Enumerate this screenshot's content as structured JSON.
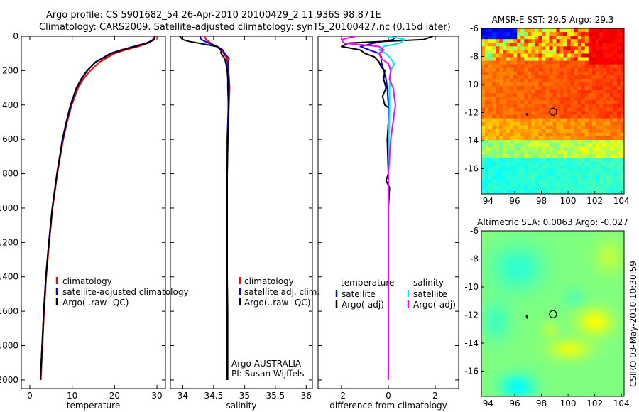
{
  "colors": {
    "climatology": "#ff0000",
    "satellite": "#0000ff",
    "argo": "#000000",
    "satellite_salinity": "#00e5ee",
    "argo_salinity": "#ff00ff",
    "frame": "#000000"
  },
  "header": {
    "line1": "Argo profile: CS 5901682_54 26-Apr-2010 20100429_2 11.936S 98.871E",
    "line2": "Climatology: CARS2009. Satellite-adjusted climatology: synTS_20100427.nc (0.15d later)"
  },
  "footer": {
    "credit": "CSIRO 03-May-2010 10:30:59"
  },
  "chart_data": [
    {
      "id": "temperature",
      "type": "line",
      "xlabel": "temperature",
      "ylabel": "",
      "xlim": [
        -2,
        32
      ],
      "ylim": [
        2050,
        0
      ],
      "xticks": [
        "0",
        "10",
        "20",
        "30"
      ],
      "xtick_values": [
        0,
        10,
        20,
        30
      ],
      "yticks": [
        "0",
        "200",
        "400",
        "600",
        "800",
        "1000",
        "1200",
        "1400",
        "1600",
        "1800",
        "2000"
      ],
      "ytick_values": [
        0,
        200,
        400,
        600,
        800,
        1000,
        1200,
        1400,
        1600,
        1800,
        2000
      ],
      "legend": [
        "climatology",
        "satellite-adjusted climatology",
        "Argo(..raw -QC)"
      ],
      "series": [
        {
          "name": "climatology",
          "color_key": "climatology",
          "depth": [
            0,
            20,
            40,
            60,
            80,
            100,
            150,
            200,
            250,
            300,
            400,
            500,
            600,
            800,
            1000,
            1200,
            1400,
            1600,
            1800,
            2000
          ],
          "values": [
            29.3,
            29.0,
            28.0,
            25.5,
            22.5,
            20.0,
            16.5,
            14.3,
            12.6,
            11.4,
            9.9,
            8.8,
            7.9,
            6.5,
            5.4,
            4.6,
            3.9,
            3.4,
            3.0,
            2.6
          ]
        },
        {
          "name": "satellite-adjusted climatology",
          "color_key": "satellite",
          "depth": [
            0,
            20,
            40,
            60,
            80,
            100,
            150,
            200,
            250,
            300,
            400,
            500,
            600,
            800,
            1000,
            1200,
            1400,
            1600,
            1800,
            2000
          ],
          "values": [
            29.6,
            29.3,
            27.5,
            24.5,
            21.5,
            19.0,
            15.5,
            13.6,
            12.2,
            11.1,
            9.7,
            8.7,
            7.8,
            6.4,
            5.3,
            4.5,
            3.8,
            3.3,
            2.9,
            2.5
          ]
        },
        {
          "name": "Argo(..raw -QC)",
          "color_key": "argo",
          "depth": [
            0,
            20,
            40,
            60,
            80,
            100,
            150,
            200,
            250,
            300,
            400,
            500,
            600,
            800,
            1000,
            1200,
            1400,
            1600,
            1800,
            2000
          ],
          "values": [
            29.5,
            29.4,
            27.8,
            24.8,
            21.8,
            19.3,
            15.6,
            13.5,
            12.1,
            11.0,
            9.6,
            8.6,
            7.7,
            6.4,
            5.3,
            4.5,
            3.8,
            3.3,
            2.9,
            2.5
          ]
        }
      ]
    },
    {
      "id": "salinity",
      "type": "line",
      "xlabel": "salinity",
      "ylabel": "",
      "xlim": [
        33.8,
        36.1
      ],
      "ylim": [
        2050,
        0
      ],
      "xticks": [
        "34",
        "34.5",
        "35",
        "35.5",
        "36"
      ],
      "xtick_values": [
        34,
        34.5,
        35,
        35.5,
        36
      ],
      "legend": [
        "climatology",
        "satellite adj. clim.",
        "Argo(..raw -QC)"
      ],
      "annotation": [
        "Argo AUSTRALIA",
        "PI: Susan Wijffels"
      ],
      "series": [
        {
          "name": "climatology",
          "color_key": "climatology",
          "depth": [
            0,
            20,
            40,
            60,
            80,
            100,
            130,
            160,
            200,
            250,
            300,
            400,
            500,
            600,
            800,
            1000,
            1200,
            1400,
            1600,
            1800,
            2000
          ],
          "values": [
            34.35,
            34.38,
            34.45,
            34.55,
            34.62,
            34.66,
            34.72,
            34.72,
            34.74,
            34.75,
            34.76,
            34.75,
            34.74,
            34.73,
            34.72,
            34.72,
            34.72,
            34.72,
            34.73,
            34.73,
            34.73
          ]
        },
        {
          "name": "satellite adj. clim.",
          "color_key": "satellite",
          "depth": [
            0,
            20,
            40,
            60,
            80,
            100,
            130,
            160,
            200,
            250,
            300,
            400,
            500,
            600,
            800,
            1000,
            1200,
            1400,
            1600,
            1800,
            2000
          ],
          "values": [
            34.28,
            34.3,
            34.42,
            34.56,
            34.65,
            34.68,
            34.75,
            34.73,
            34.74,
            34.75,
            34.75,
            34.74,
            34.73,
            34.72,
            34.72,
            34.72,
            34.72,
            34.72,
            34.72,
            34.72,
            34.72
          ]
        },
        {
          "name": "Argo(..raw -QC)",
          "color_key": "argo",
          "depth": [
            0,
            20,
            30,
            40,
            60,
            80,
            100,
            130,
            160,
            200,
            250,
            300,
            400,
            500,
            600,
            800,
            1000,
            1200,
            1400,
            1600,
            1800,
            2000
          ],
          "values": [
            33.95,
            34.0,
            34.1,
            34.25,
            34.55,
            34.62,
            34.62,
            34.68,
            34.7,
            34.72,
            34.73,
            34.73,
            34.74,
            34.74,
            34.73,
            34.72,
            34.72,
            34.72,
            34.72,
            34.72,
            34.72,
            34.72
          ]
        }
      ]
    },
    {
      "id": "difference",
      "type": "line",
      "xlabel": "difference from climatology",
      "ylabel": "",
      "xlim": [
        -3,
        3
      ],
      "ylim": [
        2050,
        0
      ],
      "xticks": [
        "-2",
        "0",
        "2"
      ],
      "xtick_values": [
        -2,
        0,
        2
      ],
      "legend_left_title": "temperature",
      "legend_right_title": "salinity",
      "legend": [
        "satellite",
        "Argo(-adj)",
        "satellite",
        "Argo(-adj)"
      ],
      "series": [
        {
          "name": "temperature satellite",
          "color_key": "satellite",
          "depth": [
            0,
            20,
            40,
            60,
            80,
            100,
            120,
            150,
            200,
            250,
            300,
            400,
            500,
            600,
            800,
            1000,
            1200,
            1400,
            1600,
            1800,
            2000
          ],
          "values": [
            0.3,
            0.2,
            -0.6,
            -1.2,
            -0.8,
            -0.4,
            -0.3,
            -0.3,
            -0.2,
            -0.1,
            -0.05,
            0.0,
            0.0,
            0.0,
            0.0,
            0.0,
            0.0,
            0.0,
            0.0,
            0.0,
            0.0
          ]
        },
        {
          "name": "temperature Argo(-adj)",
          "color_key": "argo",
          "depth": [
            0,
            20,
            40,
            60,
            80,
            100,
            120,
            150,
            180,
            200,
            250,
            300,
            350,
            400,
            420,
            500,
            600,
            800,
            840,
            880,
            1000,
            1200,
            1400,
            1600,
            1800,
            2000
          ],
          "values": [
            1.9,
            1.5,
            -1.7,
            -2.0,
            -1.2,
            -1.0,
            -0.6,
            -0.4,
            -0.3,
            -0.15,
            -0.2,
            -0.1,
            -0.25,
            -0.15,
            0.05,
            0.0,
            -0.05,
            0.0,
            -0.1,
            0.05,
            0.0,
            0.0,
            0.0,
            0.0,
            0.0,
            0.0
          ]
        },
        {
          "name": "salinity satellite",
          "color_key": "satellite_salinity",
          "depth": [
            0,
            20,
            40,
            60,
            80,
            100,
            130,
            160,
            200,
            300,
            400,
            500,
            600,
            800,
            1000,
            1200,
            1400,
            1600,
            1800,
            2000
          ],
          "values": [
            0.0,
            0.7,
            0.5,
            -0.2,
            -0.4,
            -0.1,
            0.1,
            0.25,
            0.1,
            0.05,
            0.05,
            0.03,
            0.02,
            0.0,
            0.0,
            0.0,
            0.0,
            0.0,
            0.0,
            0.0
          ]
        },
        {
          "name": "salinity Argo(-adj)",
          "color_key": "argo_salinity",
          "depth": [
            0,
            20,
            40,
            60,
            80,
            100,
            130,
            160,
            200,
            250,
            300,
            400,
            500,
            600,
            800,
            1000,
            1200,
            1400,
            1600,
            1800,
            2000
          ],
          "values": [
            -1.4,
            -2.0,
            -1.9,
            -0.4,
            -0.2,
            -0.4,
            -0.3,
            0.0,
            0.1,
            0.05,
            0.2,
            0.3,
            0.2,
            0.1,
            0.0,
            0.0,
            0.0,
            0.0,
            0.0,
            0.0,
            0.0
          ]
        }
      ]
    },
    {
      "id": "sst_map",
      "type": "heatmap",
      "title": "AMSR-E SST: 29.5  Argo: 29.3",
      "xlim": [
        93.5,
        104.2
      ],
      "ylim": [
        -17.8,
        -6.0
      ],
      "xticks": [
        "94",
        "96",
        "98",
        "100",
        "102",
        "104"
      ],
      "xtick_values": [
        94,
        96,
        98,
        100,
        102,
        104
      ],
      "yticks": [
        "-6",
        "-8",
        "-10",
        "-12",
        "-14",
        "-16"
      ],
      "ytick_values": [
        -6,
        -8,
        -10,
        -12,
        -14,
        -16
      ],
      "colorscale": "jet, SST approx 27–31 degC",
      "profile_location": {
        "lon": 98.871,
        "lat": -11.936
      },
      "track_points": [
        {
          "lon": 96.9,
          "lat": -12.1
        },
        {
          "lon": 96.95,
          "lat": -12.2
        }
      ]
    },
    {
      "id": "sla_map",
      "type": "heatmap",
      "title": "Altimetric SLA: 0.0063  Argo: -0.027",
      "xlim": [
        93.5,
        104.2
      ],
      "ylim": [
        -17.8,
        -6.0
      ],
      "xticks": [
        "94",
        "96",
        "98",
        "100",
        "102",
        "104"
      ],
      "xtick_values": [
        94,
        96,
        98,
        100,
        102,
        104
      ],
      "yticks": [
        "-6",
        "-8",
        "-10",
        "-12",
        "-14",
        "-16"
      ],
      "ytick_values": [
        -6,
        -8,
        -10,
        -12,
        -14,
        -16
      ],
      "colorscale": "jet, sea level anomaly",
      "profile_location": {
        "lon": 98.871,
        "lat": -11.936
      },
      "track_points": [
        {
          "lon": 96.9,
          "lat": -12.1
        },
        {
          "lon": 96.95,
          "lat": -12.2
        }
      ]
    }
  ]
}
